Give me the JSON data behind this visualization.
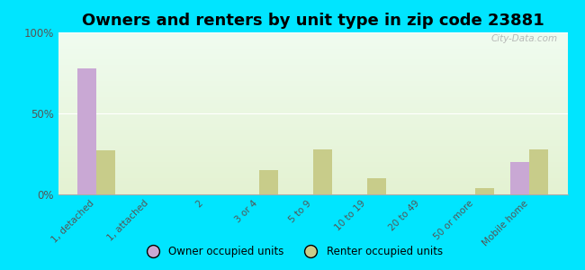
{
  "title": "Owners and renters by unit type in zip code 23881",
  "categories": [
    "1, detached",
    "1, attached",
    "2",
    "3 or 4",
    "5 to 9",
    "10 to 19",
    "20 to 49",
    "50 or more",
    "Mobile home"
  ],
  "owner_values": [
    78,
    0,
    0,
    0,
    0,
    0,
    0,
    0,
    20
  ],
  "renter_values": [
    27,
    0,
    0,
    15,
    28,
    10,
    0,
    4,
    28
  ],
  "owner_color": "#c9a8d4",
  "renter_color": "#c8cc8a",
  "background_color": "#00e5ff",
  "ylim": [
    0,
    100
  ],
  "yticks": [
    0,
    50,
    100
  ],
  "ytick_labels": [
    "0%",
    "50%",
    "100%"
  ],
  "bar_width": 0.35,
  "legend_owner": "Owner occupied units",
  "legend_renter": "Renter occupied units",
  "title_fontsize": 13,
  "watermark": "City-Data.com"
}
